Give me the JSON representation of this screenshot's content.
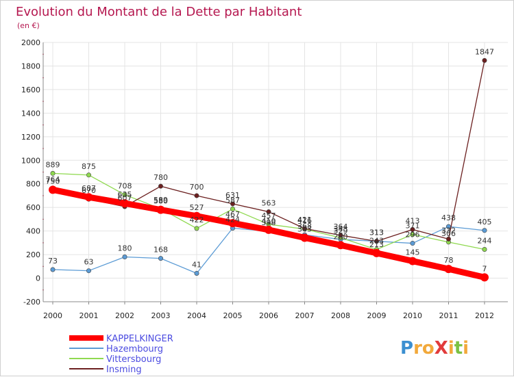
{
  "chart_data": {
    "type": "line",
    "title": "Evolution du Montant de la Dette par Habitant",
    "subtitle": "(en €)",
    "xlabel": "",
    "ylabel": "",
    "ylim": [
      -200,
      2000
    ],
    "yticks": [
      "-200",
      "0",
      "200",
      "400",
      "600",
      "800",
      "1000",
      "1200",
      "1400",
      "1600",
      "1800",
      "2000"
    ],
    "grid": true,
    "legend_position": "bottom-left",
    "categories": [
      "2000",
      "2001",
      "2002",
      "2003",
      "2004",
      "2005",
      "2006",
      "2007",
      "2008",
      "2009",
      "2010",
      "2011",
      "2012"
    ],
    "series": [
      {
        "name": "KAPPELKINGER",
        "color": "#ff0000",
        "values": [
          750,
          687,
          635,
          580,
          527,
          467,
          410,
          343,
          280,
          213,
          145,
          78,
          7
        ]
      },
      {
        "name": "Hazembourg",
        "color": "#5b9bd5",
        "values": [
          73,
          63,
          180,
          168,
          41,
          424,
          398,
          368,
          329,
          313,
          296,
          438,
          405
        ]
      },
      {
        "name": "Vittersbourg",
        "color": "#8fd94f",
        "values": [
          889,
          875,
          708,
          589,
          422,
          587,
          457,
          416,
          343,
          243,
          371,
          306,
          244
        ]
      },
      {
        "name": "Insming",
        "color": "#6b1f1f",
        "values": [
          764,
          670,
          607,
          780,
          700,
          631,
          563,
          421,
          364,
          313,
          413,
          332,
          1847
        ]
      }
    ]
  },
  "logo": {
    "text": "ProXiti",
    "colors": [
      "#3b8fd1",
      "#f2a93b",
      "#e23b3b",
      "#7ac143"
    ]
  }
}
